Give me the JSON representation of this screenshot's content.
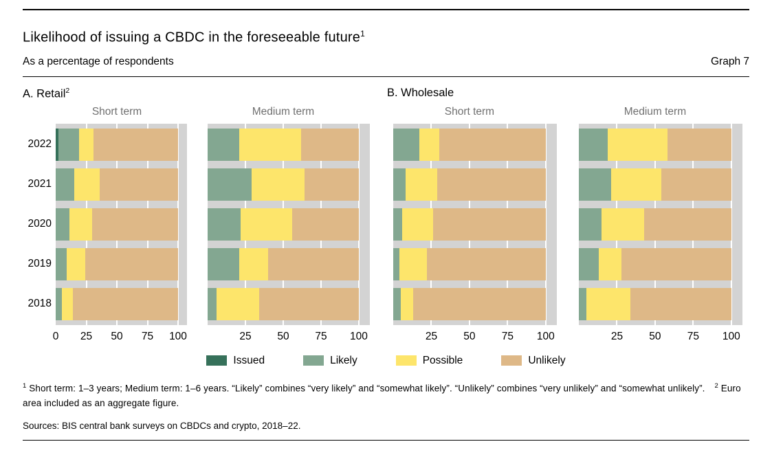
{
  "header": {
    "title": "Likelihood of issuing a CBDC in the foreseeable future",
    "title_sup": "1",
    "subtitle": "As a percentage of respondents",
    "graph_label": "Graph 7"
  },
  "sections": [
    {
      "title": "A. Retail",
      "sup": "2"
    },
    {
      "title": "B. Wholesale",
      "sup": ""
    }
  ],
  "chart_data": {
    "type": "bar",
    "orientation": "horizontal-stacked",
    "unit": "percent of respondents",
    "categories": [
      "2022",
      "2021",
      "2020",
      "2019",
      "2018"
    ],
    "series_names": [
      "Issued",
      "Likely",
      "Possible",
      "Unlikely"
    ],
    "series_colors": [
      "#36715a",
      "#83a791",
      "#fde56b",
      "#deb887"
    ],
    "plot_background": "#d3d3d3",
    "xlim": [
      0,
      100
    ],
    "grid": "white vertical lines at 25/50/75/100",
    "legend_position": "bottom-center",
    "panels": [
      {
        "group": "A. Retail",
        "name": "Short term",
        "ticks": [
          0,
          25,
          50,
          75,
          100
        ],
        "values": [
          [
            2,
            17,
            12,
            69
          ],
          [
            0,
            15,
            21,
            64
          ],
          [
            0,
            11,
            19,
            70
          ],
          [
            0,
            9,
            15,
            76
          ],
          [
            0,
            5,
            9,
            86
          ]
        ]
      },
      {
        "group": "A. Retail",
        "name": "Medium term",
        "ticks": [
          25,
          50,
          75,
          100
        ],
        "values": [
          [
            0,
            21,
            41,
            38
          ],
          [
            0,
            29,
            35,
            36
          ],
          [
            0,
            22,
            34,
            44
          ],
          [
            0,
            21,
            19,
            60
          ],
          [
            0,
            6,
            28,
            66
          ]
        ]
      },
      {
        "group": "B. Wholesale",
        "name": "Short term",
        "ticks": [
          25,
          50,
          75,
          100
        ],
        "values": [
          [
            0,
            17,
            13,
            70
          ],
          [
            0,
            8,
            21,
            71
          ],
          [
            0,
            6,
            20,
            74
          ],
          [
            0,
            4,
            18,
            78
          ],
          [
            0,
            5,
            8,
            87
          ]
        ]
      },
      {
        "group": "B. Wholesale",
        "name": "Medium term",
        "ticks": [
          25,
          50,
          75,
          100
        ],
        "values": [
          [
            0,
            19,
            39,
            42
          ],
          [
            0,
            21,
            33,
            46
          ],
          [
            0,
            15,
            28,
            57
          ],
          [
            0,
            13,
            15,
            72
          ],
          [
            0,
            5,
            29,
            66
          ]
        ]
      }
    ]
  },
  "legend": {
    "items": [
      "Issued",
      "Likely",
      "Possible",
      "Unlikely"
    ]
  },
  "footnotes": {
    "fn1_marker": "1",
    "fn1_text": "Short term: 1–3 years; Medium term: 1–6 years. “Likely” combines “very likely” and “somewhat likely”. “Unlikely” combines “very unlikely” and “somewhat unlikely”.",
    "fn2_marker": "2",
    "fn2_text": "Euro area included as an aggregate figure."
  },
  "sources": "Sources: BIS central bank surveys on CBDCs and crypto, 2018–22."
}
